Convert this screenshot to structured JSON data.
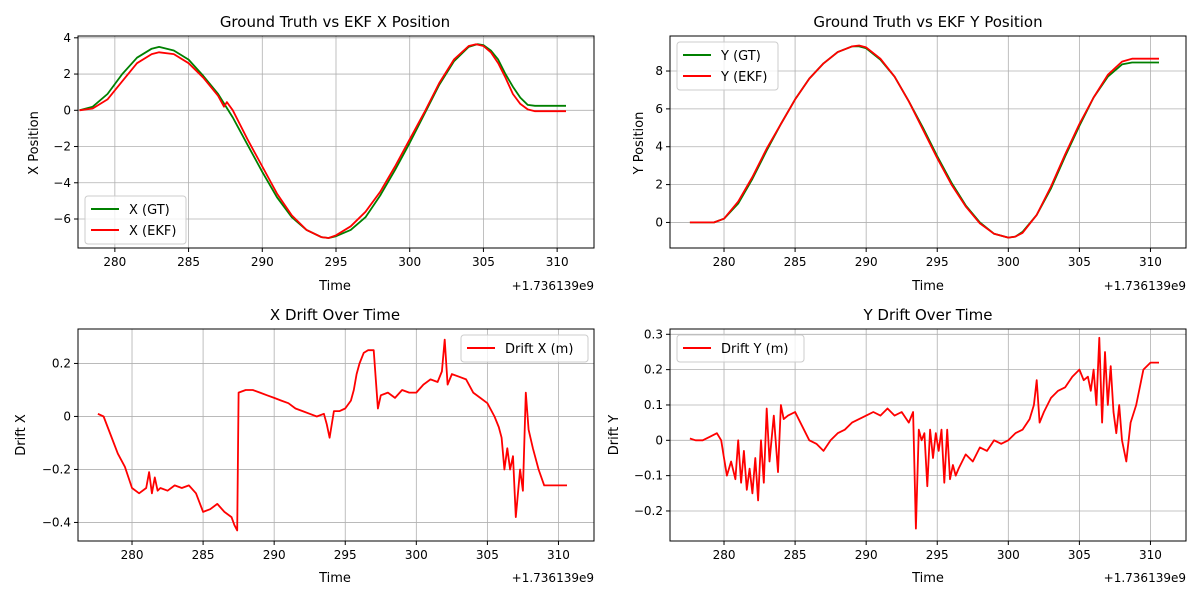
{
  "colors": {
    "gt": "#008000",
    "ekf": "#ff0000"
  },
  "chart_data": [
    {
      "id": "x-position",
      "type": "line",
      "title": "Ground Truth vs EKF X Position",
      "xlabel": "Time",
      "ylabel": "X Position",
      "x_offset_label": "+1.736139e9",
      "xlim": [
        277.5,
        312.5
      ],
      "ylim": [
        -7.6,
        4.1
      ],
      "xticks": [
        280,
        285,
        290,
        295,
        300,
        305,
        310
      ],
      "yticks": [
        -6,
        -4,
        -2,
        0,
        2,
        4
      ],
      "grid": true,
      "legend": "lower-left",
      "series": [
        {
          "name": "X (GT)",
          "color": "#008000",
          "x": [
            277.6,
            278.5,
            279.5,
            280.5,
            281.5,
            282.5,
            283.0,
            284.0,
            285.0,
            286.0,
            287.0,
            288.0,
            289.0,
            290.0,
            291.0,
            292.0,
            293.0,
            294.0,
            294.5,
            295.0,
            296.0,
            297.0,
            298.0,
            299.0,
            300.0,
            301.0,
            302.0,
            303.0,
            304.0,
            304.6,
            305.0,
            305.5,
            306.0,
            306.5,
            307.0,
            307.5,
            308.0,
            308.5,
            309.0,
            310.0,
            310.6
          ],
          "y": [
            0.0,
            0.2,
            0.9,
            2.0,
            2.9,
            3.4,
            3.5,
            3.3,
            2.8,
            1.9,
            0.9,
            -0.4,
            -1.9,
            -3.4,
            -4.8,
            -5.9,
            -6.6,
            -7.0,
            -7.05,
            -6.95,
            -6.6,
            -5.9,
            -4.7,
            -3.3,
            -1.8,
            -0.2,
            1.4,
            2.7,
            3.5,
            3.65,
            3.6,
            3.3,
            2.8,
            2.0,
            1.3,
            0.7,
            0.3,
            0.25,
            0.25,
            0.25,
            0.25
          ]
        },
        {
          "name": "X (EKF)",
          "color": "#ff0000",
          "x": [
            277.6,
            278.5,
            279.5,
            280.5,
            281.5,
            282.5,
            283.0,
            284.0,
            285.0,
            286.0,
            287.0,
            287.4,
            287.6,
            288.0,
            289.0,
            290.0,
            291.0,
            292.0,
            293.0,
            294.0,
            294.5,
            295.0,
            296.0,
            297.0,
            298.0,
            299.0,
            300.0,
            301.0,
            302.0,
            303.0,
            304.0,
            304.5,
            305.0,
            305.5,
            306.0,
            306.5,
            307.0,
            307.5,
            308.0,
            308.5,
            309.0,
            310.0,
            310.6
          ],
          "y": [
            0.0,
            0.1,
            0.6,
            1.6,
            2.6,
            3.1,
            3.2,
            3.1,
            2.6,
            1.8,
            0.8,
            0.2,
            0.45,
            0.0,
            -1.6,
            -3.1,
            -4.6,
            -5.8,
            -6.6,
            -7.0,
            -7.05,
            -6.9,
            -6.4,
            -5.6,
            -4.5,
            -3.1,
            -1.6,
            -0.1,
            1.5,
            2.8,
            3.55,
            3.65,
            3.55,
            3.2,
            2.6,
            1.8,
            0.9,
            0.35,
            0.05,
            -0.05,
            -0.05,
            -0.05,
            -0.05
          ]
        }
      ]
    },
    {
      "id": "y-position",
      "type": "line",
      "title": "Ground Truth vs EKF Y Position",
      "xlabel": "Time",
      "ylabel": "Y Position",
      "x_offset_label": "+1.736139e9",
      "xlim": [
        276.2,
        312.5
      ],
      "ylim": [
        -1.35,
        9.85
      ],
      "xticks": [
        280,
        285,
        290,
        295,
        300,
        305,
        310
      ],
      "yticks": [
        0,
        2,
        4,
        6,
        8
      ],
      "grid": true,
      "legend": "upper-left",
      "series": [
        {
          "name": "Y (GT)",
          "color": "#008000",
          "x": [
            277.6,
            278.5,
            279.3,
            280.0,
            281.0,
            282.0,
            283.0,
            284.0,
            285.0,
            286.0,
            287.0,
            288.0,
            289.0,
            289.5,
            290.0,
            291.0,
            292.0,
            293.0,
            294.0,
            295.0,
            296.0,
            297.0,
            298.0,
            299.0,
            300.0,
            300.5,
            301.0,
            302.0,
            303.0,
            304.0,
            305.0,
            306.0,
            307.0,
            308.0,
            308.7,
            309.5,
            310.6
          ],
          "y": [
            0.0,
            0.0,
            0.0,
            0.2,
            1.0,
            2.3,
            3.8,
            5.2,
            6.5,
            7.6,
            8.4,
            9.0,
            9.3,
            9.3,
            9.2,
            8.6,
            7.7,
            6.4,
            5.0,
            3.5,
            2.1,
            0.9,
            0.0,
            -0.6,
            -0.8,
            -0.75,
            -0.5,
            0.4,
            1.8,
            3.5,
            5.1,
            6.6,
            7.7,
            8.35,
            8.45,
            8.45,
            8.45
          ]
        },
        {
          "name": "Y (EKF)",
          "color": "#ff0000",
          "x": [
            277.6,
            278.5,
            279.3,
            280.0,
            281.0,
            282.0,
            283.0,
            284.0,
            285.0,
            286.0,
            287.0,
            288.0,
            289.0,
            289.5,
            290.0,
            291.0,
            292.0,
            293.0,
            294.0,
            295.0,
            296.0,
            297.0,
            298.0,
            299.0,
            300.0,
            300.5,
            301.0,
            302.0,
            303.0,
            304.0,
            305.0,
            306.0,
            307.0,
            308.0,
            308.7,
            309.5,
            310.6
          ],
          "y": [
            0.0,
            0.0,
            0.0,
            0.2,
            1.1,
            2.4,
            3.9,
            5.2,
            6.5,
            7.6,
            8.4,
            9.0,
            9.3,
            9.35,
            9.25,
            8.65,
            7.7,
            6.4,
            4.9,
            3.4,
            2.0,
            0.85,
            -0.05,
            -0.6,
            -0.8,
            -0.75,
            -0.55,
            0.4,
            1.9,
            3.6,
            5.2,
            6.6,
            7.8,
            8.5,
            8.65,
            8.65,
            8.65
          ]
        }
      ]
    },
    {
      "id": "x-drift",
      "type": "line",
      "title": "X Drift Over Time",
      "xlabel": "Time",
      "ylabel": "Drift X",
      "x_offset_label": "+1.736139e9",
      "xlim": [
        276.2,
        312.5
      ],
      "ylim": [
        -0.47,
        0.33
      ],
      "xticks": [
        280,
        285,
        290,
        295,
        300,
        305,
        310
      ],
      "yticks": [
        -0.4,
        -0.2,
        0.0,
        0.2
      ],
      "grid": true,
      "legend": "upper-right",
      "series": [
        {
          "name": "Drift X (m)",
          "color": "#ff0000",
          "x": [
            277.6,
            278.0,
            278.5,
            279.0,
            279.5,
            280.0,
            280.5,
            281.0,
            281.2,
            281.4,
            281.6,
            281.8,
            282.0,
            282.5,
            283.0,
            283.5,
            284.0,
            284.5,
            285.0,
            285.5,
            286.0,
            286.5,
            287.0,
            287.2,
            287.4,
            287.5,
            288.0,
            288.5,
            289.0,
            289.5,
            290.0,
            290.5,
            291.0,
            291.5,
            292.0,
            292.5,
            293.0,
            293.5,
            293.7,
            293.9,
            294.2,
            294.6,
            295.0,
            295.4,
            295.6,
            295.8,
            296.0,
            296.3,
            296.6,
            297.0,
            297.3,
            297.5,
            298.0,
            298.5,
            299.0,
            299.5,
            300.0,
            300.5,
            301.0,
            301.5,
            301.8,
            302.0,
            302.2,
            302.5,
            303.0,
            303.5,
            304.0,
            304.5,
            305.0,
            305.5,
            305.8,
            306.0,
            306.2,
            306.4,
            306.6,
            306.8,
            307.0,
            307.3,
            307.5,
            307.7,
            307.9,
            308.2,
            308.6,
            309.0,
            309.5,
            310.0,
            310.6
          ],
          "y": [
            0.01,
            0.0,
            -0.07,
            -0.14,
            -0.19,
            -0.27,
            -0.29,
            -0.27,
            -0.21,
            -0.29,
            -0.23,
            -0.28,
            -0.27,
            -0.28,
            -0.26,
            -0.27,
            -0.26,
            -0.29,
            -0.36,
            -0.35,
            -0.33,
            -0.36,
            -0.38,
            -0.41,
            -0.43,
            0.09,
            0.1,
            0.1,
            0.09,
            0.08,
            0.07,
            0.06,
            0.05,
            0.03,
            0.02,
            0.01,
            0.0,
            0.01,
            -0.03,
            -0.08,
            0.02,
            0.02,
            0.03,
            0.06,
            0.1,
            0.16,
            0.2,
            0.24,
            0.25,
            0.25,
            0.03,
            0.08,
            0.09,
            0.07,
            0.1,
            0.09,
            0.09,
            0.12,
            0.14,
            0.13,
            0.17,
            0.29,
            0.12,
            0.16,
            0.15,
            0.14,
            0.09,
            0.07,
            0.05,
            0.0,
            -0.04,
            -0.08,
            -0.2,
            -0.12,
            -0.2,
            -0.15,
            -0.38,
            -0.2,
            -0.28,
            0.09,
            -0.05,
            -0.12,
            -0.2,
            -0.26,
            -0.26,
            -0.26,
            -0.26
          ]
        }
      ]
    },
    {
      "id": "y-drift",
      "type": "line",
      "title": "Y Drift Over Time",
      "xlabel": "Time",
      "ylabel": "Drift Y",
      "x_offset_label": "+1.736139e9",
      "xlim": [
        276.2,
        312.5
      ],
      "ylim": [
        -0.285,
        0.315
      ],
      "xticks": [
        280,
        285,
        290,
        295,
        300,
        305,
        310
      ],
      "yticks": [
        -0.2,
        -0.1,
        0.0,
        0.1,
        0.2,
        0.3
      ],
      "grid": true,
      "legend": "upper-left",
      "series": [
        {
          "name": "Drift Y (m)",
          "color": "#ff0000",
          "x": [
            277.6,
            278.0,
            278.5,
            279.0,
            279.5,
            279.8,
            280.0,
            280.2,
            280.5,
            280.8,
            281.0,
            281.2,
            281.4,
            281.6,
            281.8,
            282.0,
            282.2,
            282.4,
            282.6,
            282.8,
            283.0,
            283.2,
            283.5,
            283.8,
            284.0,
            284.2,
            284.5,
            285.0,
            285.5,
            286.0,
            286.5,
            287.0,
            287.5,
            288.0,
            288.5,
            289.0,
            289.5,
            290.0,
            290.5,
            291.0,
            291.5,
            292.0,
            292.5,
            293.0,
            293.3,
            293.5,
            293.7,
            293.9,
            294.1,
            294.3,
            294.5,
            294.7,
            294.9,
            295.1,
            295.3,
            295.5,
            295.7,
            295.9,
            296.1,
            296.3,
            296.5,
            297.0,
            297.5,
            298.0,
            298.5,
            299.0,
            299.5,
            300.0,
            300.5,
            301.0,
            301.5,
            301.8,
            302.0,
            302.2,
            302.5,
            303.0,
            303.5,
            304.0,
            304.5,
            305.0,
            305.3,
            305.6,
            305.8,
            306.0,
            306.2,
            306.4,
            306.6,
            306.8,
            307.0,
            307.2,
            307.4,
            307.6,
            307.8,
            308.0,
            308.3,
            308.6,
            309.0,
            309.5,
            310.0,
            310.6
          ],
          "y": [
            0.005,
            0.0,
            0.0,
            0.01,
            0.02,
            0.0,
            -0.05,
            -0.1,
            -0.06,
            -0.11,
            0.0,
            -0.12,
            -0.03,
            -0.14,
            -0.08,
            -0.15,
            -0.05,
            -0.17,
            0.0,
            -0.12,
            0.09,
            -0.06,
            0.07,
            -0.09,
            0.1,
            0.06,
            0.07,
            0.08,
            0.04,
            0.0,
            -0.01,
            -0.03,
            0.0,
            0.02,
            0.03,
            0.05,
            0.06,
            0.07,
            0.08,
            0.07,
            0.09,
            0.07,
            0.08,
            0.05,
            0.08,
            -0.25,
            0.03,
            0.0,
            0.02,
            -0.13,
            0.03,
            -0.05,
            0.02,
            -0.03,
            0.03,
            -0.12,
            0.03,
            -0.11,
            -0.07,
            -0.1,
            -0.08,
            -0.04,
            -0.06,
            -0.02,
            -0.03,
            0.0,
            -0.01,
            0.0,
            0.02,
            0.03,
            0.06,
            0.1,
            0.17,
            0.05,
            0.08,
            0.12,
            0.14,
            0.15,
            0.18,
            0.2,
            0.17,
            0.18,
            0.14,
            0.2,
            0.1,
            0.29,
            0.05,
            0.25,
            0.1,
            0.21,
            0.08,
            0.02,
            0.1,
            0.0,
            -0.06,
            0.05,
            0.1,
            0.2,
            0.22,
            0.22
          ]
        }
      ]
    }
  ]
}
